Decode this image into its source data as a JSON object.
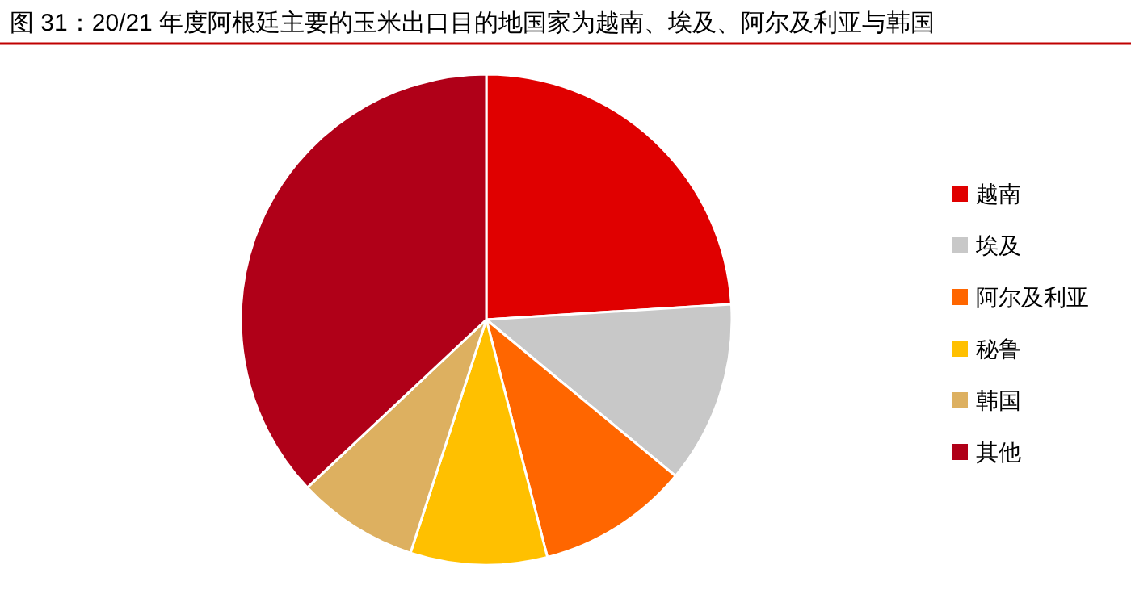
{
  "chart_data": {
    "type": "pie",
    "title": "图 31：20/21 年度阿根廷主要的玉米出口目的地国家为越南、埃及、阿尔及利亚与韩国",
    "categories": [
      "越南",
      "埃及",
      "阿尔及利亚",
      "秘鲁",
      "韩国",
      "其他"
    ],
    "values": [
      24,
      12,
      10,
      9,
      8,
      37
    ],
    "colors": [
      "#e00000",
      "#c8c8c8",
      "#ff6600",
      "#ffc000",
      "#ddb060",
      "#b00018"
    ],
    "legend": "right"
  }
}
